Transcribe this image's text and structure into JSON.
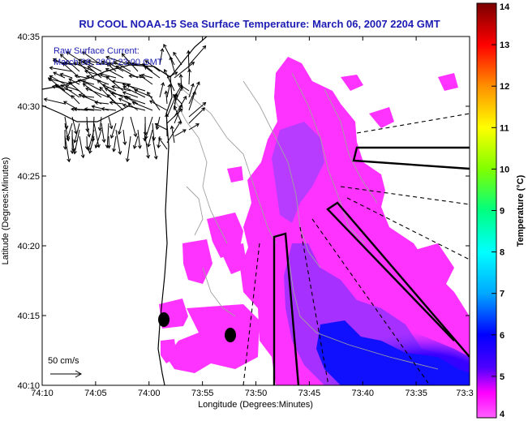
{
  "title": "RU COOL  NOAA-15  Sea Surface Temperature:  March 06, 2007 2204 GMT",
  "annotation": {
    "line1": "Raw Surface Current:",
    "line2": "March 06, 2007 23:00 GMT"
  },
  "scale_label": "50 cm/s",
  "xlabel": "Longitude (Degrees:Minutes)",
  "ylabel": "Latitude (Degrees:Minutes)",
  "x_ticks": [
    "74:10",
    "74:05",
    "74:00",
    "73:55",
    "73:50",
    "73:45",
    "73:40",
    "73:35",
    "73:3"
  ],
  "y_ticks": [
    "40:35",
    "40:30",
    "40:25",
    "40:20",
    "40:15",
    "40:10"
  ],
  "colorbar": {
    "label": "Temperature (°C)",
    "min": 4,
    "max": 14,
    "ticks": [
      "14",
      "13",
      "12",
      "11",
      "10",
      "9",
      "8",
      "7",
      "6",
      "5",
      "4"
    ],
    "colors": [
      "#ff00ff",
      "#4000ff",
      "#0000ff",
      "#00a0ff",
      "#00ffff",
      "#00ff60",
      "#80ff00",
      "#ffff00",
      "#ffa000",
      "#ff4000",
      "#e00000",
      "#800000"
    ]
  }
}
